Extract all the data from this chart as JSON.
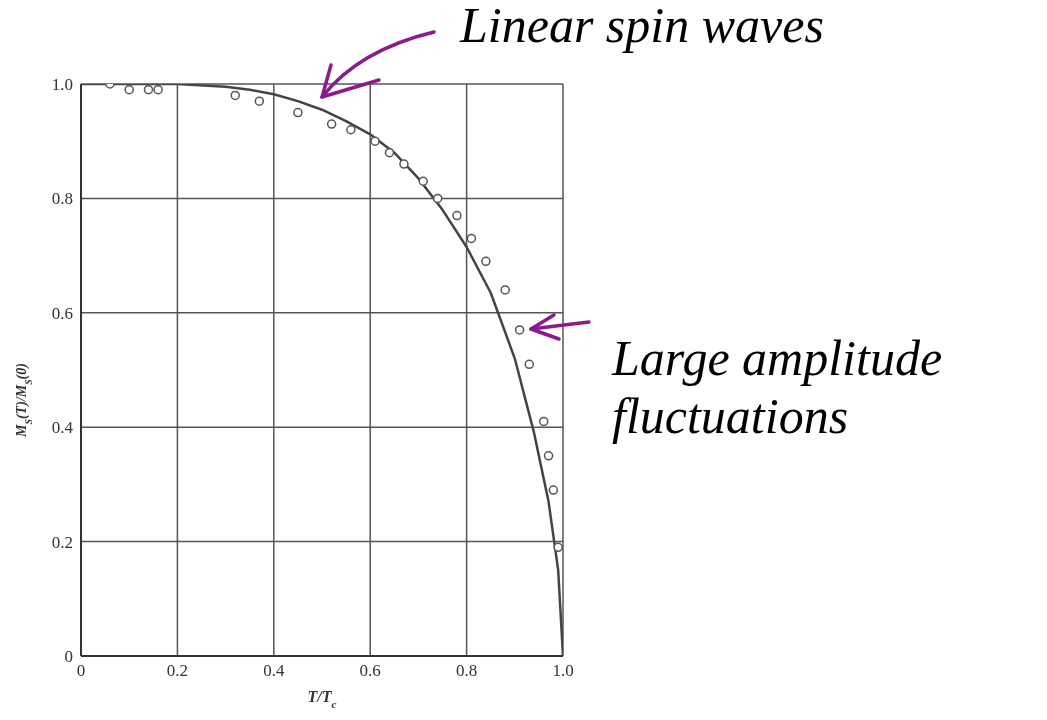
{
  "chart_data": {
    "type": "scatter",
    "xlabel": "T/T$_{c}$",
    "ylabel": "M$_{S}$(T)/M$_{S}$(0)",
    "xlim": [
      0,
      1.0
    ],
    "ylim": [
      0,
      1.0
    ],
    "xticks": [
      0,
      {
        "value": 0.2,
        "label": "0.2"
      },
      {
        "value": 0.4,
        "label": "0.4"
      },
      {
        "value": 0.6,
        "label": "0.6"
      },
      {
        "value": 0.8,
        "label": "0.8"
      },
      {
        "value": 1.0,
        "label": "1.0"
      }
    ],
    "yticks": [
      0,
      {
        "value": 0.2,
        "label": "0.2"
      },
      {
        "value": 0.4,
        "label": "0.4"
      },
      {
        "value": 0.6,
        "label": "0.6"
      },
      {
        "value": 0.8,
        "label": "0.8"
      },
      {
        "value": 1.0,
        "label": "1.0"
      }
    ],
    "grid": true,
    "legend": false,
    "series": [
      {
        "marker": "circle",
        "color": "#555555",
        "x": [
          0.06,
          0.1,
          0.14,
          0.16,
          0.32,
          0.37,
          0.45,
          0.52,
          0.56,
          0.61,
          0.64,
          0.67,
          0.71,
          0.74,
          0.78,
          0.81,
          0.84,
          0.88,
          0.91,
          0.93,
          0.96,
          0.97,
          0.98,
          0.99
        ],
        "values": [
          1.0,
          0.99,
          0.99,
          0.99,
          0.98,
          0.97,
          0.95,
          0.93,
          0.92,
          0.9,
          0.88,
          0.86,
          0.83,
          0.8,
          0.77,
          0.73,
          0.69,
          0.64,
          0.57,
          0.51,
          0.41,
          0.35,
          0.29,
          0.19
        ]
      },
      {
        "type": "line",
        "marker": "none",
        "line_style": "solid",
        "color": "#444444",
        "x": [
          0,
          0.1,
          0.2,
          0.3,
          0.35,
          0.4,
          0.45,
          0.5,
          0.55,
          0.6,
          0.65,
          0.7,
          0.75,
          0.8,
          0.85,
          0.9,
          0.94,
          0.97,
          0.99,
          1.0
        ],
        "values": [
          1.0,
          1.0,
          1.0,
          0.995,
          0.99,
          0.982,
          0.97,
          0.955,
          0.935,
          0.912,
          0.88,
          0.835,
          0.78,
          0.715,
          0.635,
          0.52,
          0.39,
          0.27,
          0.15,
          0
        ]
      }
    ],
    "annotations": [
      "Linear spin waves",
      "Large amplitude fluctuations"
    ]
  }
}
